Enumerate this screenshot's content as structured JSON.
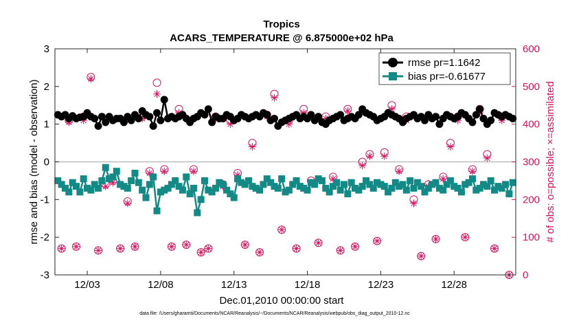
{
  "chart_data": {
    "type": "line",
    "title": "Tropics",
    "subtitle": "ACARS_TEMPERATURE @ 6.875000e+02 hPa",
    "xlabel": "Dec.01,2010 00:00:00 start",
    "ylabel_left": "rmse and bias (model - observation)",
    "ylabel_right": "# of obs: o=possible; ×=assimilated",
    "footnote": "data file: /Users/gharamti/Documents/NCAR/Reanalysis/~/Documents/NCAR/Reanalysis/webpub/obs_diag_output_2010-12.nc",
    "x_range": [
      0.8,
      32.2
    ],
    "ylim_left": [
      -3,
      3
    ],
    "ylim_right": [
      0,
      600
    ],
    "x_ticks": [
      3,
      8,
      13,
      18,
      23,
      28
    ],
    "x_tick_labels": [
      "12/03",
      "12/08",
      "12/13",
      "12/18",
      "12/23",
      "12/28"
    ],
    "y_ticks_left": [
      -3,
      -2,
      -1,
      0,
      1,
      2,
      3
    ],
    "y_ticks_right": [
      0,
      100,
      200,
      300,
      400,
      500,
      600
    ],
    "zero_line": 0,
    "colors": {
      "rmse": "#000000",
      "bias": "#138a86",
      "obs": "#d2155f",
      "zero": "#bdbdbd"
    },
    "series": [
      {
        "name": "rmse pr=1.1642",
        "axis": "left",
        "marker": "circle",
        "x": [
          1.0,
          1.25,
          1.5,
          1.75,
          2.0,
          2.25,
          2.5,
          2.75,
          3.0,
          3.25,
          3.5,
          3.75,
          4.0,
          4.25,
          4.5,
          4.75,
          5.0,
          5.25,
          5.5,
          5.75,
          6.0,
          6.25,
          6.5,
          6.75,
          7.0,
          7.25,
          7.5,
          7.75,
          8.0,
          8.25,
          8.5,
          8.75,
          9.0,
          9.25,
          9.5,
          9.75,
          10.0,
          10.25,
          10.5,
          10.75,
          11.0,
          11.25,
          11.5,
          11.75,
          12.0,
          12.25,
          12.5,
          12.75,
          13.0,
          13.25,
          13.5,
          13.75,
          14.0,
          14.25,
          14.5,
          14.75,
          15.0,
          15.25,
          15.5,
          15.75,
          16.0,
          16.25,
          16.5,
          16.75,
          17.0,
          17.25,
          17.5,
          17.75,
          18.0,
          18.25,
          18.5,
          18.75,
          19.0,
          19.25,
          19.5,
          19.75,
          20.0,
          20.25,
          20.5,
          20.75,
          21.0,
          21.25,
          21.5,
          21.75,
          22.0,
          22.25,
          22.5,
          22.75,
          23.0,
          23.25,
          23.5,
          23.75,
          24.0,
          24.25,
          24.5,
          24.75,
          25.0,
          25.25,
          25.5,
          25.75,
          26.0,
          26.25,
          26.5,
          26.75,
          27.0,
          27.25,
          27.5,
          27.75,
          28.0,
          28.25,
          28.5,
          28.75,
          29.0,
          29.25,
          29.5,
          29.75,
          30.0,
          30.25,
          30.5,
          30.75,
          31.0,
          31.25,
          31.5,
          31.75,
          32.0
        ],
        "values": [
          1.25,
          1.2,
          1.25,
          1.15,
          1.22,
          1.15,
          1.18,
          1.2,
          1.3,
          1.2,
          1.15,
          0.95,
          1.2,
          1.05,
          1.2,
          1.1,
          1.15,
          1.15,
          1.05,
          1.2,
          1.1,
          1.25,
          1.15,
          1.35,
          1.25,
          1.2,
          0.95,
          1.3,
          1.1,
          1.65,
          1.15,
          1.2,
          1.15,
          1.2,
          1.25,
          1.15,
          1.05,
          1.15,
          1.2,
          1.3,
          1.25,
          1.4,
          1.05,
          1.2,
          1.15,
          1.15,
          1.25,
          1.2,
          1.1,
          1.15,
          1.25,
          1.2,
          1.15,
          1.2,
          1.25,
          1.2,
          1.3,
          1.25,
          1.1,
          1.15,
          0.95,
          1.05,
          1.1,
          1.15,
          1.2,
          1.25,
          1.15,
          1.2,
          1.15,
          1.25,
          1.1,
          1.2,
          1.05,
          1.0,
          1.1,
          1.15,
          1.2,
          1.25,
          1.1,
          1.15,
          1.2,
          1.15,
          1.25,
          1.4,
          1.3,
          1.25,
          1.2,
          1.1,
          1.15,
          1.2,
          1.3,
          1.25,
          1.2,
          1.15,
          1.05,
          1.15,
          1.2,
          1.25,
          1.15,
          1.2,
          1.1,
          1.25,
          1.15,
          1.2,
          1.0,
          1.15,
          1.25,
          1.2,
          1.15,
          1.2,
          1.3,
          1.25,
          1.15,
          1.05,
          1.25,
          1.4,
          1.15,
          1.0,
          1.1,
          1.3,
          1.25,
          1.2,
          1.25,
          1.2,
          1.15
        ]
      },
      {
        "name": "bias pr=-0.61677",
        "axis": "left",
        "marker": "square",
        "x": [
          1.0,
          1.25,
          1.5,
          1.75,
          2.0,
          2.25,
          2.5,
          2.75,
          3.0,
          3.25,
          3.5,
          3.75,
          4.0,
          4.25,
          4.5,
          4.75,
          5.0,
          5.25,
          5.5,
          5.75,
          6.0,
          6.25,
          6.5,
          6.75,
          7.0,
          7.25,
          7.5,
          7.75,
          8.0,
          8.25,
          8.5,
          8.75,
          9.0,
          9.25,
          9.5,
          9.75,
          10.0,
          10.25,
          10.5,
          10.75,
          11.0,
          11.25,
          11.5,
          11.75,
          12.0,
          12.25,
          12.5,
          12.75,
          13.0,
          13.25,
          13.5,
          13.75,
          14.0,
          14.25,
          14.5,
          14.75,
          15.0,
          15.25,
          15.5,
          15.75,
          16.0,
          16.25,
          16.5,
          16.75,
          17.0,
          17.25,
          17.5,
          17.75,
          18.0,
          18.25,
          18.5,
          18.75,
          19.0,
          19.25,
          19.5,
          19.75,
          20.0,
          20.25,
          20.5,
          20.75,
          21.0,
          21.25,
          21.5,
          21.75,
          22.0,
          22.25,
          22.5,
          22.75,
          23.0,
          23.25,
          23.5,
          23.75,
          24.0,
          24.25,
          24.5,
          24.75,
          25.0,
          25.25,
          25.5,
          25.75,
          26.0,
          26.25,
          26.5,
          26.75,
          27.0,
          27.25,
          27.5,
          27.75,
          28.0,
          28.25,
          28.5,
          28.75,
          29.0,
          29.25,
          29.5,
          29.75,
          30.0,
          30.25,
          30.5,
          30.75,
          31.0,
          31.25,
          31.5,
          31.75,
          32.0
        ],
        "values": [
          -0.5,
          -0.6,
          -0.7,
          -0.8,
          -0.55,
          -0.65,
          -0.8,
          -0.45,
          -0.7,
          -0.75,
          -0.6,
          -0.7,
          -0.5,
          -0.15,
          -0.45,
          -0.4,
          -0.25,
          -0.6,
          -0.65,
          -0.7,
          -0.5,
          -0.3,
          -0.55,
          -0.75,
          -0.95,
          -0.6,
          -0.4,
          -1.3,
          -0.8,
          -0.75,
          -0.7,
          -0.6,
          -0.5,
          -0.65,
          -0.75,
          -0.4,
          -0.85,
          -0.7,
          -1.35,
          -1.0,
          -0.5,
          -0.75,
          -0.8,
          -0.7,
          -0.55,
          -0.6,
          -0.75,
          -0.85,
          -0.95,
          -0.45,
          -0.55,
          -0.6,
          -0.5,
          -0.65,
          -0.7,
          -0.75,
          -0.6,
          -0.45,
          -0.55,
          -0.65,
          -0.7,
          -0.45,
          -0.8,
          -0.75,
          -0.6,
          -0.5,
          -0.65,
          -0.7,
          -0.75,
          -0.55,
          -0.6,
          -0.45,
          -0.5,
          -0.7,
          -0.8,
          -0.65,
          -0.55,
          -0.75,
          -0.6,
          -0.85,
          -0.55,
          -0.7,
          -0.75,
          -0.65,
          -0.5,
          -0.6,
          -0.7,
          -0.55,
          -0.6,
          -0.65,
          -0.8,
          -0.7,
          -0.55,
          -0.65,
          -0.6,
          -0.75,
          -0.5,
          -0.7,
          -0.55,
          -0.65,
          -0.8,
          -0.7,
          -0.6,
          -0.55,
          -0.7,
          -0.75,
          -0.6,
          -0.5,
          -0.65,
          -0.7,
          -0.8,
          -0.6,
          -0.55,
          -0.45,
          -0.75,
          -0.7,
          -0.6,
          -0.65,
          -0.5,
          -0.75,
          -0.65,
          -0.7,
          -0.6,
          -0.85,
          -0.55
        ]
      },
      {
        "name": "possible",
        "axis": "right",
        "marker": "open-circle",
        "x": [
          1.25,
          1.75,
          2.25,
          2.75,
          3.25,
          3.75,
          4.25,
          4.75,
          5.25,
          5.75,
          6.25,
          6.75,
          7.25,
          7.75,
          8.25,
          8.75,
          9.25,
          9.75,
          10.25,
          10.75,
          11.25,
          11.75,
          12.25,
          12.75,
          13.25,
          13.75,
          14.25,
          14.75,
          15.25,
          15.75,
          16.25,
          16.75,
          17.25,
          17.75,
          18.25,
          18.75,
          19.25,
          19.75,
          20.25,
          20.75,
          21.25,
          21.75,
          22.25,
          22.75,
          23.25,
          23.75,
          24.25,
          24.75,
          25.25,
          25.75,
          26.25,
          26.75,
          27.25,
          27.75,
          28.25,
          28.75,
          29.25,
          29.75,
          30.25,
          30.75,
          31.25,
          31.75
        ],
        "values": [
          70,
          410,
          75,
          420,
          525,
          65,
          240,
          250,
          70,
          195,
          75,
          420,
          275,
          510,
          280,
          75,
          440,
          80,
          280,
          60,
          70,
          420,
          240,
          410,
          270,
          80,
          350,
          60,
          425,
          480,
          120,
          410,
          70,
          440,
          250,
          85,
          420,
          260,
          65,
          440,
          75,
          300,
          320,
          90,
          325,
          450,
          280,
          420,
          200,
          50,
          240,
          95,
          260,
          350,
          420,
          100,
          280,
          440,
          320,
          70,
          420,
          0
        ]
      },
      {
        "name": "assimilated",
        "axis": "right",
        "marker": "asterisk",
        "x": [
          1.25,
          1.75,
          2.25,
          2.75,
          3.25,
          3.75,
          4.25,
          4.75,
          5.25,
          5.75,
          6.25,
          6.75,
          7.25,
          7.75,
          8.25,
          8.75,
          9.25,
          9.75,
          10.25,
          10.75,
          11.25,
          11.75,
          12.25,
          12.75,
          13.25,
          13.75,
          14.25,
          14.75,
          15.25,
          15.75,
          16.25,
          16.75,
          17.25,
          17.75,
          18.25,
          18.75,
          19.25,
          19.75,
          20.25,
          20.75,
          21.25,
          21.75,
          22.25,
          22.75,
          23.25,
          23.75,
          24.25,
          24.75,
          25.25,
          25.75,
          26.25,
          26.75,
          27.25,
          27.75,
          28.25,
          28.75,
          29.25,
          29.75,
          30.25,
          30.75,
          31.25,
          31.75
        ],
        "values": [
          70,
          405,
          75,
          410,
          520,
          65,
          235,
          245,
          70,
          190,
          75,
          415,
          270,
          480,
          275,
          75,
          430,
          80,
          275,
          60,
          70,
          415,
          235,
          400,
          265,
          80,
          340,
          60,
          420,
          470,
          120,
          400,
          70,
          430,
          245,
          85,
          415,
          255,
          65,
          435,
          75,
          290,
          315,
          90,
          315,
          440,
          275,
          410,
          190,
          50,
          235,
          95,
          255,
          340,
          410,
          100,
          275,
          430,
          310,
          70,
          410,
          0
        ]
      }
    ]
  }
}
